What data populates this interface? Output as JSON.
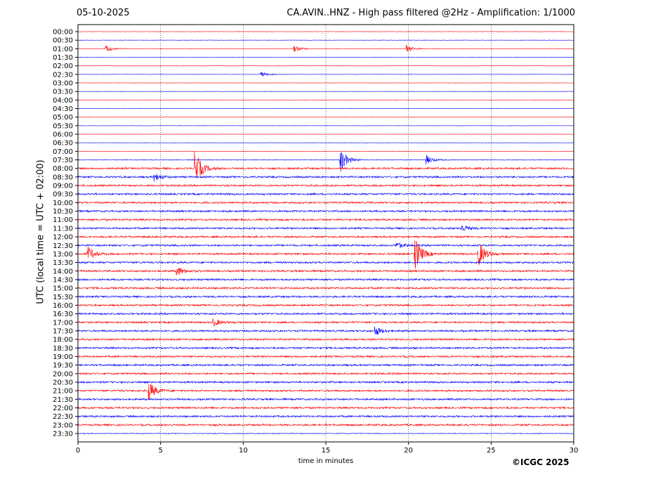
{
  "header": {
    "date": "05-10-2025",
    "title": "CA.AVIN..HNZ - High pass filtered @2Hz - Amplification: 1/1000"
  },
  "footer": {
    "copyright": "©ICGC 2025"
  },
  "colors": {
    "red": "#ff0000",
    "blue": "#0000ff"
  },
  "chart_data": {
    "type": "line",
    "title": "CA.AVIN..HNZ - High pass filtered @2Hz - Amplification: 1/1000",
    "xlabel": "time in minutes",
    "ylabel": "UTC (local time = UTC + 02:00)",
    "xlim": [
      0,
      30
    ],
    "x_ticks": [
      "0",
      "5",
      "10",
      "15",
      "20",
      "25",
      "30"
    ],
    "grid": "vertical dotted lines at each x tick",
    "legend": "none",
    "row_labels": [
      "00:00",
      "00:30",
      "01:00",
      "01:30",
      "02:00",
      "02:30",
      "03:00",
      "03:30",
      "04:00",
      "04:30",
      "05:00",
      "05:30",
      "06:00",
      "06:30",
      "07:00",
      "07:30",
      "08:00",
      "08:30",
      "09:00",
      "09:30",
      "10:00",
      "10:30",
      "11:00",
      "11:30",
      "12:00",
      "12:30",
      "13:00",
      "13:30",
      "14:00",
      "14:30",
      "15:00",
      "15:30",
      "16:00",
      "16:30",
      "17:00",
      "17:30",
      "18:00",
      "18:30",
      "19:00",
      "19:30",
      "20:00",
      "20:30",
      "21:00",
      "21:30",
      "22:00",
      "22:30",
      "23:00",
      "23:30"
    ],
    "row_colors_pattern": [
      "red",
      "blue"
    ],
    "noise_level": [
      0.05,
      0.05,
      0.05,
      0.05,
      0.05,
      0.05,
      0.05,
      0.05,
      0.05,
      0.05,
      0.05,
      0.05,
      0.05,
      0.05,
      0.06,
      0.1,
      0.25,
      0.25,
      0.25,
      0.25,
      0.25,
      0.25,
      0.25,
      0.25,
      0.25,
      0.25,
      0.25,
      0.25,
      0.25,
      0.25,
      0.25,
      0.25,
      0.25,
      0.25,
      0.25,
      0.25,
      0.25,
      0.25,
      0.25,
      0.25,
      0.25,
      0.25,
      0.25,
      0.25,
      0.25,
      0.25,
      0.25,
      0.1
    ],
    "events": [
      {
        "row": "01:00",
        "minute": 1.7,
        "amp": 0.5
      },
      {
        "row": "01:00",
        "minute": 13.1,
        "amp": 0.4
      },
      {
        "row": "01:00",
        "minute": 19.9,
        "amp": 0.5
      },
      {
        "row": "02:30",
        "minute": 11.1,
        "amp": 0.4
      },
      {
        "row": "07:30",
        "minute": 15.9,
        "amp": 1.6
      },
      {
        "row": "07:30",
        "minute": 21.1,
        "amp": 0.6
      },
      {
        "row": "08:00",
        "minute": 7.1,
        "amp": 2.2
      },
      {
        "row": "08:30",
        "minute": 4.6,
        "amp": 0.6
      },
      {
        "row": "11:30",
        "minute": 23.2,
        "amp": 0.5
      },
      {
        "row": "12:30",
        "minute": 19.3,
        "amp": 0.4
      },
      {
        "row": "13:00",
        "minute": 0.6,
        "amp": 0.9
      },
      {
        "row": "13:00",
        "minute": 20.4,
        "amp": 2.2
      },
      {
        "row": "13:00",
        "minute": 24.2,
        "amp": 1.9
      },
      {
        "row": "14:00",
        "minute": 6.0,
        "amp": 0.6
      },
      {
        "row": "17:00",
        "minute": 8.2,
        "amp": 0.5
      },
      {
        "row": "17:30",
        "minute": 18.0,
        "amp": 0.6
      },
      {
        "row": "21:00",
        "minute": 4.3,
        "amp": 1.2
      }
    ]
  }
}
